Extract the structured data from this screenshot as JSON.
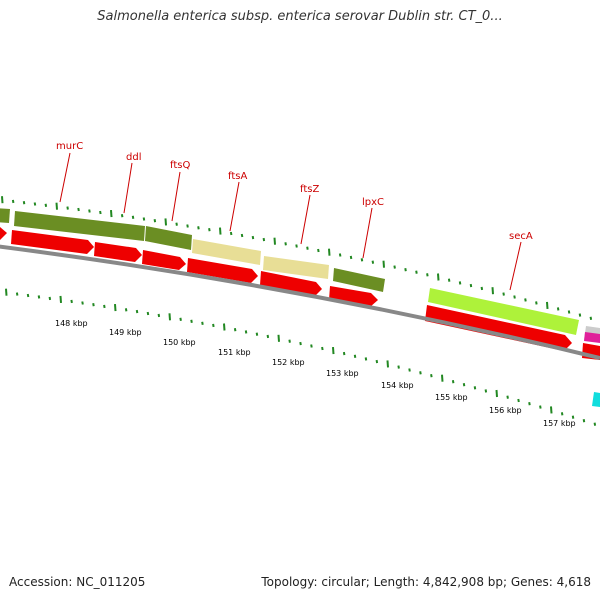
{
  "title": "Salmonella enterica subsp. enterica serovar Dublin str. CT_0...",
  "accession_text": "Accession: NC_011205",
  "summary_text": "Topology: circular; Length: 4,842,908 bp; Genes: 4,618",
  "colors": {
    "backbone": "#888888",
    "cds_arrow": "#ee0000",
    "gene_label": "#cc0000",
    "tick": "#228822",
    "olive": "#6b8e23",
    "khaki": "#e8de96",
    "lime": "#aef23a",
    "magenta": "#e0209a",
    "cyan": "#11dddd"
  },
  "gene_labels": [
    "murC",
    "ddl",
    "ftsQ",
    "ftsA",
    "ftsZ",
    "lpxC",
    "secA"
  ],
  "kbp_labels": [
    "148 kbp",
    "149 kbp",
    "150 kbp",
    "151 kbp",
    "152 kbp",
    "153 kbp",
    "154 kbp",
    "155 kbp",
    "156 kbp",
    "157 kbp"
  ]
}
